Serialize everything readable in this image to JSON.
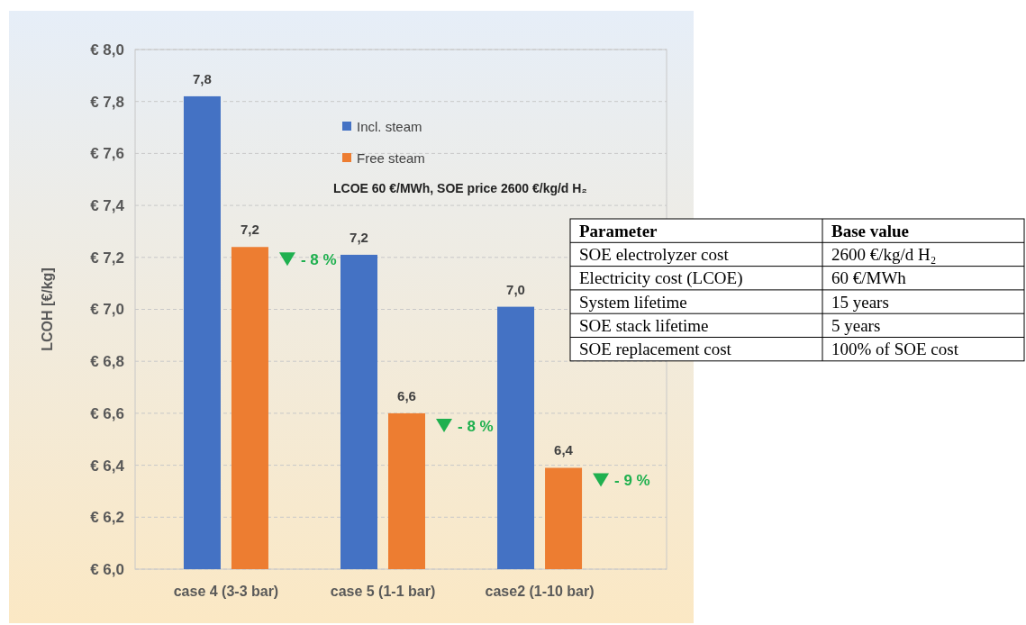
{
  "chart_data": [
    {
      "type": "bar",
      "ylabel": "LCOH [€/kg]",
      "categories": [
        "case 4 (3-3 bar)",
        "case 5 (1-1 bar)",
        "case2 (1-10 bar)"
      ],
      "series": [
        {
          "name": "Incl. steam",
          "color": "#4472c4",
          "values": [
            7.82,
            7.21,
            7.01
          ],
          "value_labels": [
            "7,8",
            "7,2",
            "7,0"
          ]
        },
        {
          "name": "Free steam",
          "color": "#ed7d31",
          "values": [
            7.24,
            6.6,
            6.39
          ],
          "value_labels": [
            "7,2",
            "6,6",
            "6,4"
          ]
        }
      ],
      "ylim": [
        6,
        8
      ],
      "yticks": [
        {
          "value": 6,
          "label": "€ 6,0"
        },
        {
          "value": 6.2,
          "label": "€ 6,2"
        },
        {
          "value": 6.4,
          "label": "€ 6,4"
        },
        {
          "value": 6.6,
          "label": "€ 6,6"
        },
        {
          "value": 6.8,
          "label": "€ 6,8"
        },
        {
          "value": 7,
          "label": "€ 7,0"
        },
        {
          "value": 7.2,
          "label": "€ 7,2"
        },
        {
          "value": 7.4,
          "label": "€ 7,4"
        },
        {
          "value": 7.6,
          "label": "€ 7,6"
        },
        {
          "value": 7.8,
          "label": "€ 7,8"
        },
        {
          "value": 8,
          "label": "€ 8,0"
        }
      ],
      "grid": "y",
      "legend": "top right",
      "annotations": [
        "LCOE 60 €/MWh, SOE price 2600 €/kg/d H₂",
        "- 8 %",
        "- 8 %",
        "- 9 %"
      ]
    },
    {
      "type": "other",
      "annotations": [
        "Parameter",
        "Base value",
        "SOE electrolyzer cost",
        "2600 €/kg/d H₂",
        "Electricity cost (LCOE)",
        "60 €/MWh",
        "System lifetime",
        "15 years",
        "SOE stack lifetime",
        "5 years",
        "SOE replacement cost",
        "100% of SOE cost"
      ]
    }
  ]
}
